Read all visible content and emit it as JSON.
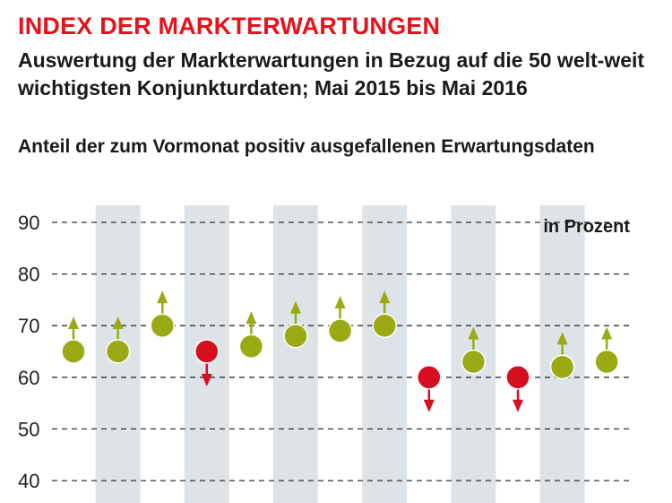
{
  "title": "INDEX DER MARKTERWARTUNGEN",
  "subtitle": "Auswertung der Markterwartungen in Bezug auf die 50 welt-weit wichtigsten Konjunkturdaten; Mai 2015 bis Mai 2016",
  "colors": {
    "up": "#9aaa14",
    "down": "#d50f1f",
    "band": "#dde3e7",
    "title": "#e3141b"
  },
  "chart_data": {
    "type": "scatter",
    "title": "Anteil der zum Vormonat positiv ausgefallenen Erwartungsdaten",
    "unit_label": "in Prozent",
    "ylim": [
      40,
      90
    ],
    "y_ticks": [
      90,
      80,
      70,
      60,
      50,
      40
    ],
    "grid": "dashed horizontal",
    "shaded_alternate_columns": true,
    "points": [
      {
        "value": 65,
        "direction": "up"
      },
      {
        "value": 65,
        "direction": "up"
      },
      {
        "value": 70,
        "direction": "up"
      },
      {
        "value": 65,
        "direction": "down"
      },
      {
        "value": 66,
        "direction": "up"
      },
      {
        "value": 68,
        "direction": "up"
      },
      {
        "value": 69,
        "direction": "up"
      },
      {
        "value": 70,
        "direction": "up"
      },
      {
        "value": 60,
        "direction": "down"
      },
      {
        "value": 63,
        "direction": "up"
      },
      {
        "value": 60,
        "direction": "down"
      },
      {
        "value": 62,
        "direction": "up"
      },
      {
        "value": 63,
        "direction": "up"
      }
    ]
  }
}
